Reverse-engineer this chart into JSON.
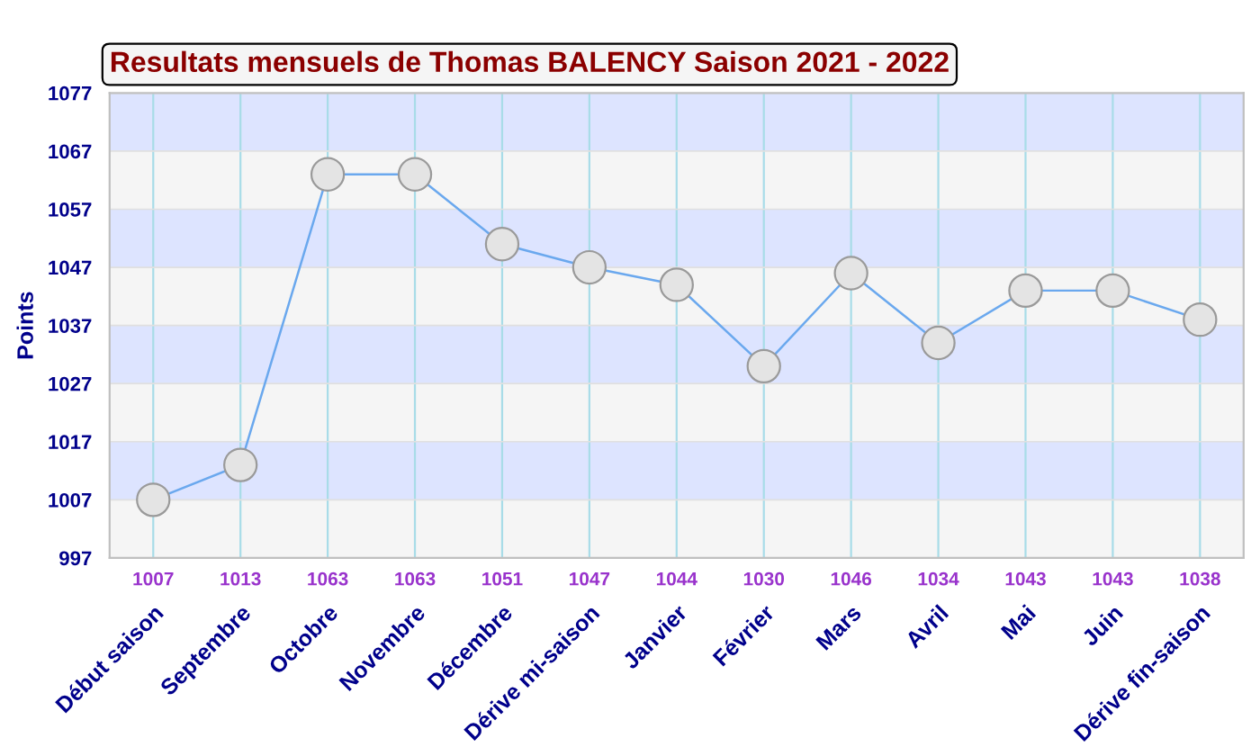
{
  "chart_data": {
    "type": "line",
    "title": "Resultats mensuels de Thomas BALENCY Saison 2021 - 2022",
    "ylabel": "Points",
    "categories": [
      "Début saison",
      "Septembre",
      "Octobre",
      "Novembre",
      "Décembre",
      "Dérive mi-saison",
      "Janvier",
      "Février",
      "Mars",
      "Avril",
      "Mai",
      "Juin",
      "Dérive fin-saison"
    ],
    "series": [
      {
        "color": "#6aa8ee",
        "values": [
          1007,
          1013,
          1063,
          1063,
          1051,
          1047,
          1044,
          1030,
          1046,
          1034,
          1043,
          1043,
          1038
        ]
      }
    ],
    "ylim": [
      997,
      1077
    ],
    "yticks": [
      997,
      1007,
      1017,
      1027,
      1037,
      1047,
      1057,
      1067,
      1077
    ],
    "bands": [
      {
        "axis": "y",
        "from": 1007,
        "to": 1017,
        "color": "#dde4ff"
      },
      {
        "axis": "y",
        "from": 1027,
        "to": 1037,
        "color": "#dde4ff"
      },
      {
        "axis": "y",
        "from": 1047,
        "to": 1057,
        "color": "#dde4ff"
      },
      {
        "axis": "y",
        "from": 1067,
        "to": 1077,
        "color": "#dde4ff"
      }
    ],
    "grid": true,
    "marker": "circle",
    "line_style": "solid",
    "data_labels": true
  }
}
